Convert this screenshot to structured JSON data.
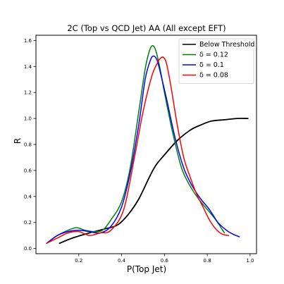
{
  "chart_data": {
    "type": "line",
    "title": "2C (Top vs QCD Jet) AA (All except EFT)",
    "xlabel": "P(Top Jet)",
    "ylabel": "R",
    "xlim": [
      0.0,
      1.03
    ],
    "ylim": [
      -0.04,
      1.64
    ],
    "xticks": [
      0.2,
      0.4,
      0.6,
      0.8,
      1.0
    ],
    "xtick_labels": [
      "0.2",
      "0.4",
      "0.6",
      "0.8",
      "1.0"
    ],
    "yticks": [
      0.0,
      0.2,
      0.4,
      0.6,
      0.8,
      1.0,
      1.2,
      1.4,
      1.6
    ],
    "ytick_labels": [
      "0.0",
      "0.2",
      "0.4",
      "0.6",
      "0.8",
      "1.0",
      "1.2",
      "1.4",
      "1.6"
    ],
    "grid": false,
    "legend_position": "top-right",
    "series": [
      {
        "name": "Below Threshold",
        "color": "#000000",
        "x": [
          0.11,
          0.17,
          0.25,
          0.32,
          0.38,
          0.43,
          0.48,
          0.53,
          0.56,
          0.6,
          0.66,
          0.72,
          0.77,
          0.82,
          0.88,
          0.94,
          0.99
        ],
        "y": [
          0.04,
          0.08,
          0.12,
          0.15,
          0.18,
          0.26,
          0.38,
          0.55,
          0.64,
          0.72,
          0.83,
          0.91,
          0.95,
          0.98,
          0.99,
          1.0,
          1.0
        ]
      },
      {
        "name": "δ = 0.12",
        "color": "#008000",
        "x": [
          0.05,
          0.1,
          0.15,
          0.19,
          0.23,
          0.27,
          0.31,
          0.35,
          0.4,
          0.44,
          0.48,
          0.51,
          0.53,
          0.545,
          0.56,
          0.58,
          0.6,
          0.64,
          0.68,
          0.72,
          0.76,
          0.8,
          0.84,
          0.88
        ],
        "y": [
          0.04,
          0.1,
          0.14,
          0.16,
          0.14,
          0.13,
          0.14,
          0.22,
          0.36,
          0.62,
          1.05,
          1.38,
          1.52,
          1.56,
          1.52,
          1.38,
          1.2,
          0.88,
          0.62,
          0.48,
          0.38,
          0.3,
          0.22,
          0.12
        ]
      },
      {
        "name": "δ = 0.1",
        "color": "#0000ff",
        "x": [
          0.05,
          0.1,
          0.15,
          0.2,
          0.25,
          0.3,
          0.35,
          0.4,
          0.44,
          0.48,
          0.51,
          0.535,
          0.55,
          0.565,
          0.58,
          0.61,
          0.65,
          0.69,
          0.73,
          0.77,
          0.81,
          0.85,
          0.89,
          0.92,
          0.95
        ],
        "y": [
          0.04,
          0.1,
          0.13,
          0.14,
          0.13,
          0.12,
          0.17,
          0.32,
          0.58,
          0.95,
          1.3,
          1.45,
          1.48,
          1.45,
          1.36,
          1.15,
          0.85,
          0.62,
          0.48,
          0.38,
          0.3,
          0.2,
          0.14,
          0.11,
          0.09
        ]
      },
      {
        "name": "δ = 0.08",
        "color": "#ff0000",
        "x": [
          0.05,
          0.1,
          0.15,
          0.2,
          0.25,
          0.3,
          0.35,
          0.41,
          0.46,
          0.5,
          0.54,
          0.565,
          0.58,
          0.595,
          0.61,
          0.63,
          0.66,
          0.69,
          0.72,
          0.75,
          0.78,
          0.81,
          0.84,
          0.87,
          0.9
        ],
        "y": [
          0.04,
          0.08,
          0.12,
          0.13,
          0.1,
          0.12,
          0.14,
          0.3,
          0.7,
          1.05,
          1.32,
          1.42,
          1.46,
          1.47,
          1.42,
          1.25,
          0.95,
          0.7,
          0.55,
          0.42,
          0.32,
          0.22,
          0.15,
          0.11,
          0.1
        ]
      }
    ]
  }
}
